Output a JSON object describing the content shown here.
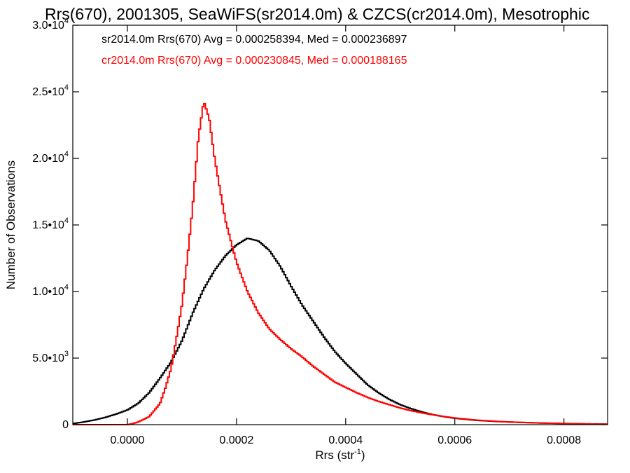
{
  "chart_data": {
    "type": "line",
    "title": "Rrs(670), 2001305, SeaWiFS(sr2014.0m) & CZCS(cr2014.0m), Mesotrophic",
    "xlabel": "Rrs (str",
    "xlabel_sup": "-1",
    "xlabel_end": ")",
    "ylabel": "Number of Observations",
    "xlim": [
      -0.0001,
      0.00088
    ],
    "ylim": [
      0,
      30000
    ],
    "xticks": [
      0.0,
      0.0002,
      0.0004,
      0.0006,
      0.0008
    ],
    "xtick_labels": [
      "0.0000",
      "0.0002",
      "0.0004",
      "0.0006",
      "0.0008"
    ],
    "yticks": [
      0,
      5000,
      10000,
      15000,
      20000,
      25000,
      30000
    ],
    "ytick_labels": [
      {
        "mant": "0",
        "exp": ""
      },
      {
        "mant": "5.0•10",
        "exp": "3"
      },
      {
        "mant": "1.0•10",
        "exp": "4"
      },
      {
        "mant": "1.5•10",
        "exp": "4"
      },
      {
        "mant": "2.0•10",
        "exp": "4"
      },
      {
        "mant": "2.5•10",
        "exp": "4"
      },
      {
        "mant": "3.0•10",
        "exp": "4"
      }
    ],
    "grid": false,
    "legend_position": "top-left",
    "series": [
      {
        "name": "sr2014.0m Rrs(670) Avg = 0.000258394, Med = 0.000236897",
        "color": "#000000",
        "points": [
          [
            -0.0001,
            80
          ],
          [
            -8e-05,
            200
          ],
          [
            -6e-05,
            350
          ],
          [
            -4e-05,
            550
          ],
          [
            -2e-05,
            800
          ],
          [
            0.0,
            1100
          ],
          [
            2e-05,
            1600
          ],
          [
            4e-05,
            2400
          ],
          [
            6e-05,
            3500
          ],
          [
            8e-05,
            4700
          ],
          [
            0.0001,
            6300
          ],
          [
            0.00012,
            8400
          ],
          [
            0.00014,
            10200
          ],
          [
            0.00016,
            11600
          ],
          [
            0.00018,
            12700
          ],
          [
            0.0002,
            13500
          ],
          [
            0.00022,
            14000
          ],
          [
            0.00024,
            13800
          ],
          [
            0.00026,
            13100
          ],
          [
            0.00028,
            11900
          ],
          [
            0.0003,
            10400
          ],
          [
            0.00032,
            9000
          ],
          [
            0.00034,
            7800
          ],
          [
            0.00036,
            6600
          ],
          [
            0.00038,
            5500
          ],
          [
            0.0004,
            4600
          ],
          [
            0.00042,
            3800
          ],
          [
            0.00044,
            3000
          ],
          [
            0.00046,
            2400
          ],
          [
            0.00048,
            1900
          ],
          [
            0.0005,
            1500
          ],
          [
            0.00052,
            1200
          ],
          [
            0.00054,
            950
          ],
          [
            0.00056,
            750
          ],
          [
            0.00058,
            600
          ],
          [
            0.0006,
            480
          ],
          [
            0.00064,
            320
          ],
          [
            0.00068,
            230
          ],
          [
            0.00072,
            170
          ],
          [
            0.00076,
            120
          ],
          [
            0.0008,
            90
          ],
          [
            0.00084,
            60
          ],
          [
            0.00088,
            40
          ]
        ]
      },
      {
        "name": "cr2014.0m Rrs(670) Avg = 0.000230845, Med = 0.000188165",
        "color": "#ff0000",
        "points": [
          [
            -0.0001,
            0
          ],
          [
            0.0,
            0
          ],
          [
            1e-05,
            80
          ],
          [
            2e-05,
            200
          ],
          [
            4e-05,
            600
          ],
          [
            6e-05,
            1600
          ],
          [
            7e-05,
            2800
          ],
          [
            8e-05,
            4200
          ],
          [
            9e-05,
            6500
          ],
          [
            0.0001,
            9000
          ],
          [
            0.00011,
            12500
          ],
          [
            0.00012,
            16500
          ],
          [
            0.00013,
            21500
          ],
          [
            0.00014,
            24300
          ],
          [
            0.00015,
            23000
          ],
          [
            0.00016,
            20000
          ],
          [
            0.00017,
            17600
          ],
          [
            0.00018,
            15300
          ],
          [
            0.0002,
            12200
          ],
          [
            0.00022,
            10000
          ],
          [
            0.00024,
            8400
          ],
          [
            0.00026,
            7200
          ],
          [
            0.00028,
            6400
          ],
          [
            0.0003,
            5700
          ],
          [
            0.00032,
            5100
          ],
          [
            0.00034,
            4400
          ],
          [
            0.00036,
            3800
          ],
          [
            0.00038,
            3200
          ],
          [
            0.0004,
            2800
          ],
          [
            0.00042,
            2400
          ],
          [
            0.00044,
            2050
          ],
          [
            0.00046,
            1750
          ],
          [
            0.00048,
            1500
          ],
          [
            0.0005,
            1250
          ],
          [
            0.00052,
            1050
          ],
          [
            0.00054,
            880
          ],
          [
            0.00056,
            740
          ],
          [
            0.00058,
            610
          ],
          [
            0.0006,
            500
          ],
          [
            0.00064,
            340
          ],
          [
            0.00068,
            240
          ],
          [
            0.00072,
            170
          ],
          [
            0.00076,
            120
          ],
          [
            0.0008,
            80
          ],
          [
            0.00084,
            55
          ],
          [
            0.00088,
            40
          ]
        ]
      }
    ]
  }
}
